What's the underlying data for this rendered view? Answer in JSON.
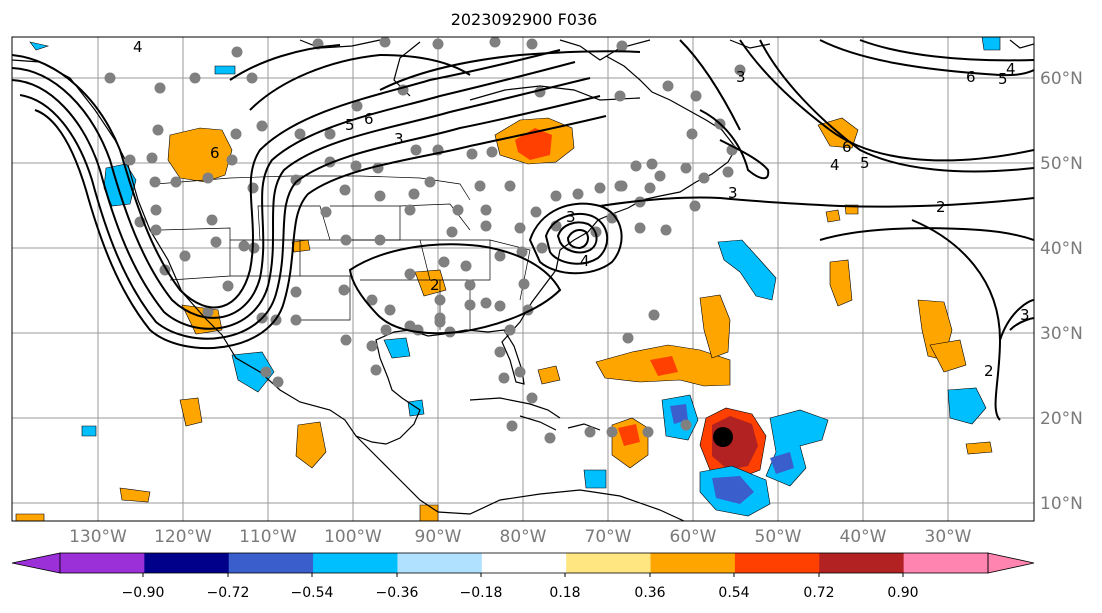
{
  "map": {
    "title": "2023092900 F036",
    "lon_labels": [
      "130°W",
      "120°W",
      "110°W",
      "100°W",
      "90°W",
      "80°W",
      "70°W",
      "60°W",
      "50°W",
      "40°W",
      "30°W"
    ],
    "lat_labels": [
      "60°N",
      "50°N",
      "40°N",
      "30°N",
      "20°N",
      "10°N"
    ],
    "contour_labels": [
      "2",
      "3",
      "4",
      "5",
      "6"
    ],
    "colorbar": {
      "colors": [
        "#9b30d9",
        "#00008b",
        "#3a5fcd",
        "#00bfff",
        "#b0e2ff",
        "#ffffff",
        "#ffe680",
        "#ffa500",
        "#ff4000",
        "#b22222",
        "#ff85b0"
      ],
      "tick_labels": [
        "−0.90",
        "−0.72",
        "−0.54",
        "−0.36",
        "−0.18",
        "0.18",
        "0.36",
        "0.54",
        "0.72",
        "0.90"
      ]
    }
  }
}
